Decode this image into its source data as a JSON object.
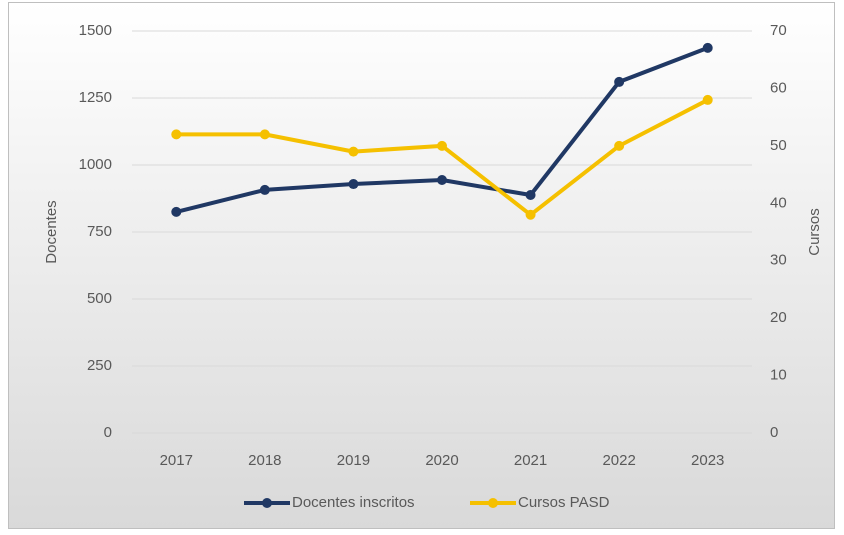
{
  "chart_data": {
    "type": "line",
    "categories": [
      "2017",
      "2018",
      "2019",
      "2020",
      "2021",
      "2022",
      "2023"
    ],
    "y_label": "Docentes",
    "y2_label": "Cursos",
    "ylim": [
      0,
      1500
    ],
    "yticks": [
      0,
      250,
      500,
      750,
      1000,
      1250,
      1500
    ],
    "y2lim": [
      0,
      70
    ],
    "y2ticks": [
      0,
      10,
      20,
      30,
      40,
      50,
      60,
      70
    ],
    "grid": true,
    "legend": "bottom",
    "series": [
      {
        "name": "Docentes inscritos",
        "color": "#203864",
        "values": [
          825,
          907,
          929,
          944,
          888,
          1310,
          1437
        ]
      },
      {
        "name": "Cursos PASD",
        "color": "#f5c000",
        "axis": "y2",
        "values": [
          52,
          52,
          49,
          50,
          38,
          50,
          58
        ]
      }
    ]
  }
}
